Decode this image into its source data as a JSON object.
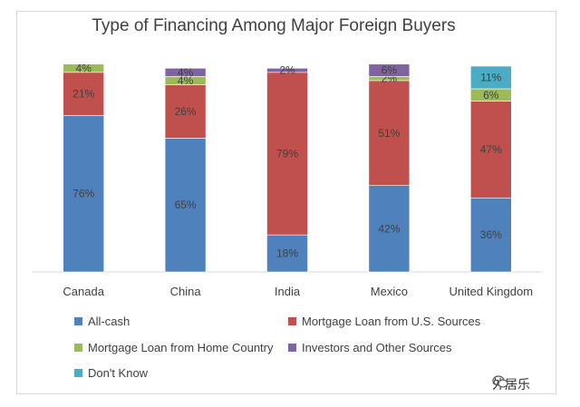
{
  "chart_data": {
    "type": "bar",
    "stacked": true,
    "title": "Type of Financing Among Major Foreign Buyers",
    "categories": [
      "Canada",
      "China",
      "India",
      "Mexico",
      "United Kingdom"
    ],
    "series": [
      {
        "name": "All-cash",
        "color": "#4F81BD",
        "values": [
          76,
          65,
          18,
          42,
          36
        ],
        "labels": [
          "76%",
          "65%",
          "18%",
          "42%",
          "36%"
        ]
      },
      {
        "name": "Mortgage Loan from U.S. Sources",
        "color": "#C0504D",
        "values": [
          21,
          26,
          79,
          51,
          47
        ],
        "labels": [
          "21%",
          "26%",
          "79%",
          "51%",
          "47%"
        ]
      },
      {
        "name": "Mortgage Loan from Home Country",
        "color": "#9BBB59",
        "values": [
          4,
          4,
          0,
          2,
          6
        ],
        "labels": [
          "4%",
          "4%",
          "",
          "2%",
          "6%"
        ]
      },
      {
        "name": "Investors and Other Sources",
        "color": "#8064A2",
        "values": [
          0,
          4,
          2,
          6,
          0
        ],
        "labels": [
          "",
          "4%",
          "2%",
          "6%",
          ""
        ]
      },
      {
        "name": "Don't Know",
        "color": "#4BACC6",
        "values": [
          0,
          0,
          0,
          0,
          11
        ],
        "labels": [
          "",
          "",
          "",
          "",
          "11%"
        ]
      }
    ],
    "ylim": [
      0,
      100
    ],
    "grid": false,
    "legend_position": "bottom"
  },
  "watermark": {
    "text": "外居乐"
  }
}
